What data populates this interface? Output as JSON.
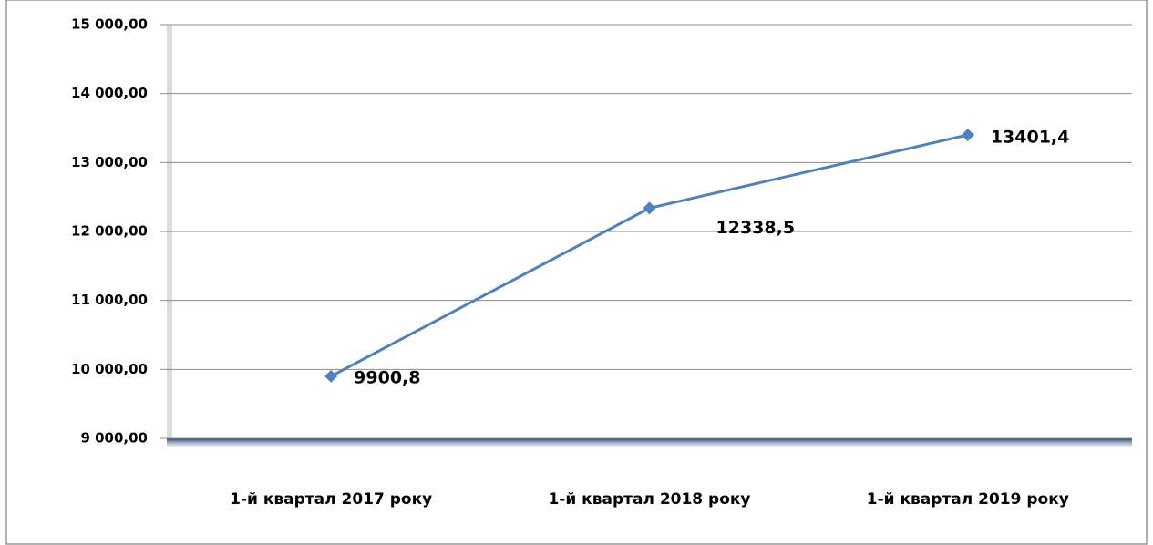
{
  "chart_data": {
    "type": "line",
    "categories": [
      "1-й квартал  2017 року",
      "1-й квартал  2018 року",
      "1-й квартал  2019 року"
    ],
    "values": [
      9900.8,
      12338.5,
      13401.4
    ],
    "value_labels": [
      "9900,8",
      "12338,5",
      "13401,4"
    ],
    "color": "#4f81bd",
    "ylim": [
      9000,
      15000
    ],
    "yticks": [
      {
        "value": 9000,
        "label": "9 000,00"
      },
      {
        "value": 10000,
        "label": "10 000,00"
      },
      {
        "value": 11000,
        "label": "11 000,00"
      },
      {
        "value": 12000,
        "label": "12 000,00"
      },
      {
        "value": 13000,
        "label": "13 000,00"
      },
      {
        "value": 14000,
        "label": "14 000,00"
      },
      {
        "value": 15000,
        "label": "15 000,00"
      }
    ],
    "grid": true
  }
}
